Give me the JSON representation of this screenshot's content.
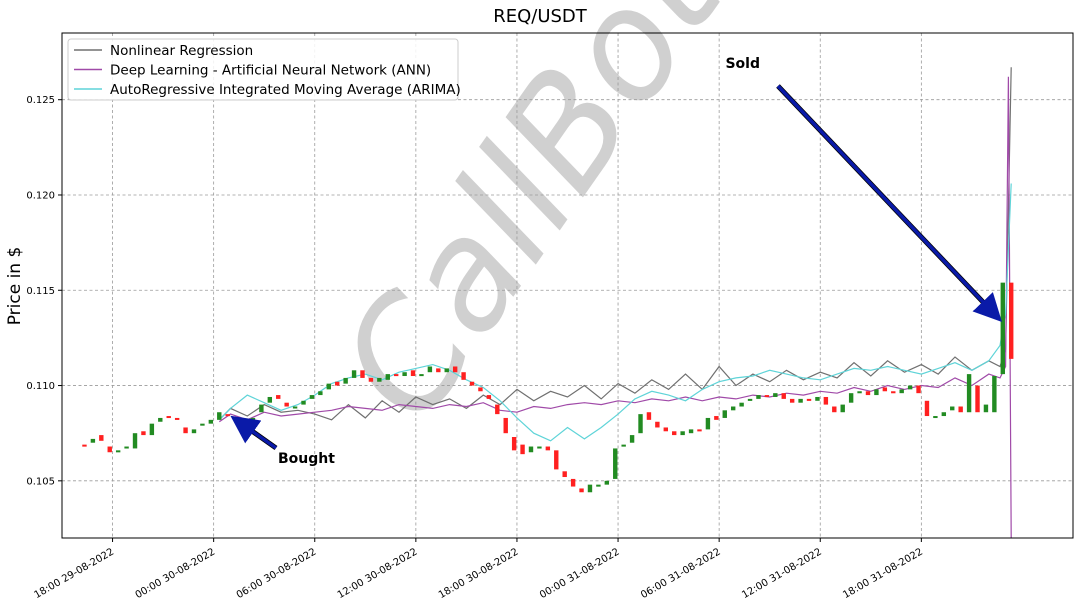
{
  "chart_data": {
    "type": "line",
    "title": "REQ/USDT",
    "ylabel": "Price in $",
    "xlabel": "",
    "ylim": [
      0.102,
      0.1285
    ],
    "yticks": [
      0.105,
      0.11,
      0.115,
      0.12,
      0.125
    ],
    "ytick_labels": [
      "0.105",
      "0.110",
      "0.115",
      "0.120",
      "0.125"
    ],
    "x_start": "2022-08-29T15:00",
    "x_end": "2022-09-01T03:00",
    "xticks": [
      "2022-08-29T18:00",
      "2022-08-30T00:00",
      "2022-08-30T06:00",
      "2022-08-30T12:00",
      "2022-08-30T18:00",
      "2022-08-31T00:00",
      "2022-08-31T06:00",
      "2022-08-31T12:00",
      "2022-08-31T18:00"
    ],
    "xtick_labels": [
      "18:00 29-08-2022",
      "00:00 30-08-2022",
      "06:00 30-08-2022",
      "12:00 30-08-2022",
      "18:00 30-08-2022",
      "00:00 31-08-2022",
      "06:00 31-08-2022",
      "12:00 31-08-2022",
      "18:00 31-08-2022"
    ],
    "grid": true,
    "legend_position": "top-left",
    "candles": {
      "up_color": "#228b22",
      "down_color": "#ff2020",
      "points": [
        [
          "2022-08-29T16:20",
          0.1069,
          0.1068
        ],
        [
          "2022-08-29T16:50",
          0.107,
          0.1072
        ],
        [
          "2022-08-29T17:20",
          0.1074,
          0.1071
        ],
        [
          "2022-08-29T17:50",
          0.1068,
          0.1065
        ],
        [
          "2022-08-29T18:20",
          0.1066,
          0.1066
        ],
        [
          "2022-08-29T18:50",
          0.1067,
          0.1068
        ],
        [
          "2022-08-29T19:20",
          0.1067,
          0.1075
        ],
        [
          "2022-08-29T19:50",
          0.1076,
          0.1074
        ],
        [
          "2022-08-29T20:20",
          0.1074,
          0.108
        ],
        [
          "2022-08-29T20:50",
          0.1081,
          0.1083
        ],
        [
          "2022-08-29T21:20",
          0.1084,
          0.1083
        ],
        [
          "2022-08-29T21:50",
          0.1083,
          0.1082
        ],
        [
          "2022-08-29T22:20",
          0.1078,
          0.1075
        ],
        [
          "2022-08-29T22:50",
          0.1075,
          0.1077
        ],
        [
          "2022-08-29T23:20",
          0.1079,
          0.108
        ],
        [
          "2022-08-29T23:50",
          0.108,
          0.1082
        ],
        [
          "2022-08-30T00:20",
          0.1082,
          0.1086
        ],
        [
          "2022-08-30T00:50",
          0.1085,
          0.1084
        ],
        [
          "2022-08-30T01:20",
          0.1083,
          0.1082
        ],
        [
          "2022-08-30T01:50",
          0.1082,
          0.1081
        ],
        [
          "2022-08-30T02:20",
          0.1082,
          0.1083
        ],
        [
          "2022-08-30T02:50",
          0.1086,
          0.109
        ],
        [
          "2022-08-30T03:20",
          0.1091,
          0.1094
        ],
        [
          "2022-08-30T03:50",
          0.1095,
          0.1093
        ],
        [
          "2022-08-30T04:20",
          0.1091,
          0.1089
        ],
        [
          "2022-08-30T04:50",
          0.1088,
          0.1089
        ],
        [
          "2022-08-30T05:20",
          0.109,
          0.1092
        ],
        [
          "2022-08-30T05:50",
          0.1093,
          0.1095
        ],
        [
          "2022-08-30T06:20",
          0.1095,
          0.1097
        ],
        [
          "2022-08-30T06:50",
          0.1098,
          0.1101
        ],
        [
          "2022-08-30T07:20",
          0.1102,
          0.11
        ],
        [
          "2022-08-30T07:50",
          0.1101,
          0.1104
        ],
        [
          "2022-08-30T08:20",
          0.1104,
          0.1108
        ],
        [
          "2022-08-30T08:50",
          0.1108,
          0.1104
        ],
        [
          "2022-08-30T09:20",
          0.1104,
          0.1102
        ],
        [
          "2022-08-30T09:50",
          0.1102,
          0.1104
        ],
        [
          "2022-08-30T10:20",
          0.1103,
          0.1106
        ],
        [
          "2022-08-30T10:50",
          0.1106,
          0.1105
        ],
        [
          "2022-08-30T11:20",
          0.1105,
          0.1107
        ],
        [
          "2022-08-30T11:50",
          0.1108,
          0.1105
        ],
        [
          "2022-08-30T12:20",
          0.1105,
          0.1106
        ],
        [
          "2022-08-30T12:50",
          0.1107,
          0.111
        ],
        [
          "2022-08-30T13:20",
          0.1109,
          0.1107
        ],
        [
          "2022-08-30T13:50",
          0.1107,
          0.1109
        ],
        [
          "2022-08-30T14:20",
          0.111,
          0.1107
        ],
        [
          "2022-08-30T14:50",
          0.1107,
          0.1103
        ],
        [
          "2022-08-30T15:20",
          0.1102,
          0.11
        ],
        [
          "2022-08-30T15:50",
          0.1099,
          0.1097
        ],
        [
          "2022-08-30T16:20",
          0.1095,
          0.1093
        ],
        [
          "2022-08-30T16:50",
          0.109,
          0.1085
        ],
        [
          "2022-08-30T17:20",
          0.1083,
          0.1075
        ],
        [
          "2022-08-30T17:50",
          0.1073,
          0.1066
        ],
        [
          "2022-08-30T18:20",
          0.1069,
          0.1064
        ],
        [
          "2022-08-30T18:50",
          0.1065,
          0.1068
        ],
        [
          "2022-08-30T19:20",
          0.1067,
          0.1068
        ],
        [
          "2022-08-30T19:50",
          0.1068,
          0.1066
        ],
        [
          "2022-08-30T20:20",
          0.1066,
          0.1056
        ],
        [
          "2022-08-30T20:50",
          0.1055,
          0.1052
        ],
        [
          "2022-08-30T21:20",
          0.1051,
          0.1047
        ],
        [
          "2022-08-30T21:50",
          0.1046,
          0.1044
        ],
        [
          "2022-08-30T22:20",
          0.1044,
          0.1048
        ],
        [
          "2022-08-30T22:50",
          0.1047,
          0.1048
        ],
        [
          "2022-08-30T23:20",
          0.1048,
          0.105
        ],
        [
          "2022-08-30T23:50",
          0.1051,
          0.1067
        ],
        [
          "2022-08-31T00:20",
          0.1068,
          0.1069
        ],
        [
          "2022-08-31T00:50",
          0.107,
          0.1074
        ],
        [
          "2022-08-31T01:20",
          0.1075,
          0.1085
        ],
        [
          "2022-08-31T01:50",
          0.1086,
          0.1082
        ],
        [
          "2022-08-31T02:20",
          0.1081,
          0.1078
        ],
        [
          "2022-08-31T02:50",
          0.1078,
          0.1076
        ],
        [
          "2022-08-31T03:20",
          0.1076,
          0.1074
        ],
        [
          "2022-08-31T03:50",
          0.1074,
          0.1076
        ],
        [
          "2022-08-31T04:20",
          0.1075,
          0.1077
        ],
        [
          "2022-08-31T04:50",
          0.1077,
          0.1076
        ],
        [
          "2022-08-31T05:20",
          0.1077,
          0.1083
        ],
        [
          "2022-08-31T05:50",
          0.1084,
          0.1082
        ],
        [
          "2022-08-31T06:20",
          0.1083,
          0.1087
        ],
        [
          "2022-08-31T06:50",
          0.1087,
          0.1089
        ],
        [
          "2022-08-31T07:20",
          0.1089,
          0.1091
        ],
        [
          "2022-08-31T07:50",
          0.1092,
          0.1093
        ],
        [
          "2022-08-31T08:20",
          0.1093,
          0.1095
        ],
        [
          "2022-08-31T08:50",
          0.1095,
          0.1094
        ],
        [
          "2022-08-31T09:20",
          0.1094,
          0.1096
        ],
        [
          "2022-08-31T09:50",
          0.1096,
          0.1093
        ],
        [
          "2022-08-31T10:20",
          0.1093,
          0.1091
        ],
        [
          "2022-08-31T10:50",
          0.1091,
          0.1093
        ],
        [
          "2022-08-31T11:20",
          0.1093,
          0.1092
        ],
        [
          "2022-08-31T11:50",
          0.1092,
          0.1094
        ],
        [
          "2022-08-31T12:20",
          0.1094,
          0.109
        ],
        [
          "2022-08-31T12:50",
          0.1089,
          0.1086
        ],
        [
          "2022-08-31T13:20",
          0.1086,
          0.109
        ],
        [
          "2022-08-31T13:50",
          0.1091,
          0.1096
        ],
        [
          "2022-08-31T14:20",
          0.1096,
          0.1097
        ],
        [
          "2022-08-31T14:50",
          0.1097,
          0.1095
        ],
        [
          "2022-08-31T15:20",
          0.1095,
          0.1098
        ],
        [
          "2022-08-31T15:50",
          0.1099,
          0.1097
        ],
        [
          "2022-08-31T16:20",
          0.1097,
          0.1096
        ],
        [
          "2022-08-31T16:50",
          0.1096,
          0.1098
        ],
        [
          "2022-08-31T17:20",
          0.1098,
          0.11
        ],
        [
          "2022-08-31T17:50",
          0.11,
          0.1096
        ],
        [
          "2022-08-31T18:20",
          0.1092,
          0.1084
        ],
        [
          "2022-08-31T18:50",
          0.1084,
          0.1084
        ],
        [
          "2022-08-31T19:20",
          0.1084,
          0.1086
        ],
        [
          "2022-08-31T19:50",
          0.1087,
          0.1089
        ],
        [
          "2022-08-31T20:20",
          0.1089,
          0.1086
        ],
        [
          "2022-08-31T20:50",
          0.1086,
          0.1106
        ],
        [
          "2022-08-31T21:20",
          0.11,
          0.1086
        ],
        [
          "2022-08-31T21:50",
          0.1086,
          0.109
        ],
        [
          "2022-08-31T22:20",
          0.1086,
          0.1105
        ],
        [
          "2022-08-31T22:50",
          0.1106,
          0.1154
        ],
        [
          "2022-08-31T23:20",
          0.1154,
          0.1114
        ]
      ]
    },
    "series": [
      {
        "name": "Nonlinear Regression",
        "color": "#707070",
        "x": [
          "2022-08-30T00:20",
          "2022-08-30T01:00",
          "2022-08-30T02:00",
          "2022-08-30T03:00",
          "2022-08-30T04:00",
          "2022-08-30T05:00",
          "2022-08-30T06:00",
          "2022-08-30T07:00",
          "2022-08-30T08:00",
          "2022-08-30T09:00",
          "2022-08-30T10:00",
          "2022-08-30T11:00",
          "2022-08-30T12:00",
          "2022-08-30T13:00",
          "2022-08-30T14:00",
          "2022-08-30T15:00",
          "2022-08-30T16:00",
          "2022-08-30T17:00",
          "2022-08-30T18:00",
          "2022-08-30T19:00",
          "2022-08-30T20:00",
          "2022-08-30T21:00",
          "2022-08-30T22:00",
          "2022-08-30T23:00",
          "2022-08-31T00:00",
          "2022-08-31T01:00",
          "2022-08-31T02:00",
          "2022-08-31T03:00",
          "2022-08-31T04:00",
          "2022-08-31T05:00",
          "2022-08-31T06:00",
          "2022-08-31T07:00",
          "2022-08-31T08:00",
          "2022-08-31T09:00",
          "2022-08-31T10:00",
          "2022-08-31T11:00",
          "2022-08-31T12:00",
          "2022-08-31T13:00",
          "2022-08-31T14:00",
          "2022-08-31T15:00",
          "2022-08-31T16:00",
          "2022-08-31T17:00",
          "2022-08-31T18:00",
          "2022-08-31T19:00",
          "2022-08-31T20:00",
          "2022-08-31T21:00",
          "2022-08-31T22:00",
          "2022-08-31T22:40",
          "2022-08-31T23:00",
          "2022-08-31T23:20"
        ],
        "y": [
          0.1082,
          0.1088,
          0.1084,
          0.109,
          0.1086,
          0.1087,
          0.1085,
          0.1082,
          0.109,
          0.1083,
          0.1092,
          0.1086,
          0.1094,
          0.109,
          0.1093,
          0.1088,
          0.1095,
          0.109,
          0.1098,
          0.1092,
          0.1097,
          0.1094,
          0.11,
          0.1093,
          0.1101,
          0.1096,
          0.1103,
          0.1098,
          0.1106,
          0.1098,
          0.111,
          0.11,
          0.1106,
          0.1102,
          0.1108,
          0.1103,
          0.1107,
          0.1104,
          0.1112,
          0.1105,
          0.1113,
          0.1107,
          0.1111,
          0.1106,
          0.1115,
          0.1108,
          0.1113,
          0.111,
          0.1119,
          0.1267
        ]
      },
      {
        "name": "Deep Learning - Artificial Neural Network (ANN)",
        "color": "#a04aa8",
        "x": [
          "2022-08-30T00:20",
          "2022-08-30T01:00",
          "2022-08-30T02:00",
          "2022-08-30T03:00",
          "2022-08-30T04:00",
          "2022-08-30T05:00",
          "2022-08-30T06:00",
          "2022-08-30T07:00",
          "2022-08-30T08:00",
          "2022-08-30T09:00",
          "2022-08-30T10:00",
          "2022-08-30T11:00",
          "2022-08-30T12:00",
          "2022-08-30T13:00",
          "2022-08-30T14:00",
          "2022-08-30T15:00",
          "2022-08-30T16:00",
          "2022-08-30T17:00",
          "2022-08-30T18:00",
          "2022-08-30T19:00",
          "2022-08-30T20:00",
          "2022-08-30T21:00",
          "2022-08-30T22:00",
          "2022-08-30T23:00",
          "2022-08-31T00:00",
          "2022-08-31T01:00",
          "2022-08-31T02:00",
          "2022-08-31T03:00",
          "2022-08-31T04:00",
          "2022-08-31T05:00",
          "2022-08-31T06:00",
          "2022-08-31T07:00",
          "2022-08-31T08:00",
          "2022-08-31T09:00",
          "2022-08-31T10:00",
          "2022-08-31T11:00",
          "2022-08-31T12:00",
          "2022-08-31T13:00",
          "2022-08-31T14:00",
          "2022-08-31T15:00",
          "2022-08-31T16:00",
          "2022-08-31T17:00",
          "2022-08-31T18:00",
          "2022-08-31T19:00",
          "2022-08-31T20:00",
          "2022-08-31T21:00",
          "2022-08-31T22:00",
          "2022-08-31T22:40",
          "2022-08-31T23:00",
          "2022-08-31T23:10",
          "2022-08-31T23:20"
        ],
        "y": [
          0.1081,
          0.1085,
          0.1082,
          0.1086,
          0.1084,
          0.1085,
          0.1086,
          0.1087,
          0.1089,
          0.1088,
          0.1087,
          0.109,
          0.1089,
          0.1088,
          0.109,
          0.1089,
          0.1091,
          0.1087,
          0.1086,
          0.1089,
          0.1088,
          0.109,
          0.1091,
          0.109,
          0.1092,
          0.1091,
          0.1093,
          0.1092,
          0.1094,
          0.1092,
          0.1094,
          0.1093,
          0.1095,
          0.1094,
          0.1096,
          0.1095,
          0.1097,
          0.1096,
          0.1099,
          0.1097,
          0.11,
          0.1098,
          0.11,
          0.1099,
          0.1104,
          0.11,
          0.1106,
          0.1104,
          0.111,
          0.1262,
          0.102
        ]
      },
      {
        "name": "AutoRegressive Integrated Moving Average (ARIMA)",
        "color": "#5fd4d8",
        "x": [
          "2022-08-30T00:20",
          "2022-08-30T01:00",
          "2022-08-30T02:00",
          "2022-08-30T03:00",
          "2022-08-30T04:00",
          "2022-08-30T05:00",
          "2022-08-30T06:00",
          "2022-08-30T07:00",
          "2022-08-30T08:00",
          "2022-08-30T09:00",
          "2022-08-30T10:00",
          "2022-08-30T11:00",
          "2022-08-30T12:00",
          "2022-08-30T13:00",
          "2022-08-30T14:00",
          "2022-08-30T15:00",
          "2022-08-30T16:00",
          "2022-08-30T17:00",
          "2022-08-30T18:00",
          "2022-08-30T19:00",
          "2022-08-30T20:00",
          "2022-08-30T21:00",
          "2022-08-30T22:00",
          "2022-08-30T23:00",
          "2022-08-31T00:00",
          "2022-08-31T01:00",
          "2022-08-31T02:00",
          "2022-08-31T03:00",
          "2022-08-31T04:00",
          "2022-08-31T05:00",
          "2022-08-31T06:00",
          "2022-08-31T07:00",
          "2022-08-31T08:00",
          "2022-08-31T09:00",
          "2022-08-31T10:00",
          "2022-08-31T11:00",
          "2022-08-31T12:00",
          "2022-08-31T13:00",
          "2022-08-31T14:00",
          "2022-08-31T15:00",
          "2022-08-31T16:00",
          "2022-08-31T17:00",
          "2022-08-31T18:00",
          "2022-08-31T19:00",
          "2022-08-31T20:00",
          "2022-08-31T21:00",
          "2022-08-31T22:00",
          "2022-08-31T22:40",
          "2022-08-31T23:00",
          "2022-08-31T23:20"
        ],
        "y": [
          0.1082,
          0.1088,
          0.1095,
          0.1091,
          0.1087,
          0.109,
          0.1095,
          0.1101,
          0.1104,
          0.1106,
          0.1103,
          0.1107,
          0.1109,
          0.1111,
          0.1108,
          0.1103,
          0.1099,
          0.1092,
          0.1083,
          0.1075,
          0.1071,
          0.1078,
          0.1072,
          0.1078,
          0.1085,
          0.1093,
          0.1097,
          0.1095,
          0.1092,
          0.1098,
          0.1102,
          0.1104,
          0.1105,
          0.1108,
          0.1106,
          0.1104,
          0.1103,
          0.1106,
          0.1109,
          0.1108,
          0.111,
          0.1108,
          0.1106,
          0.1109,
          0.1112,
          0.1108,
          0.1113,
          0.1121,
          0.1138,
          0.1206
        ]
      }
    ],
    "annotations": [
      {
        "text": "Bought",
        "arrow_to": [
          "2022-08-30T01:20",
          0.1082
        ],
        "arrow_color": "#0a1aa8"
      },
      {
        "text": "Sold",
        "arrow_to": [
          "2022-08-31T22:30",
          0.1136
        ],
        "arrow_color": "#0a1aa8"
      }
    ],
    "watermark": "CallBot"
  }
}
